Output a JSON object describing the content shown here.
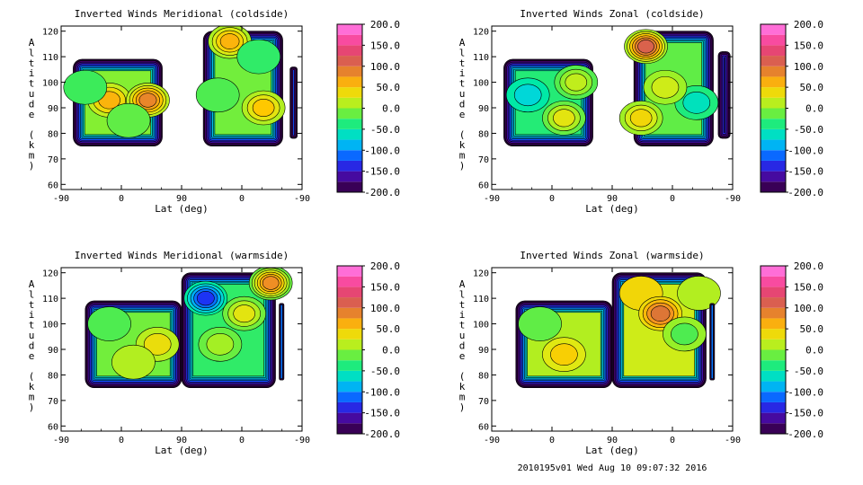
{
  "chart_data": [
    {
      "type": "heatmap",
      "title": "Inverted Winds Meridional (coldside)",
      "xlabel": "Lat (deg)",
      "ylabel": "Altitude (km)",
      "x_ticks": [
        "-90",
        "0",
        "90",
        "0",
        "-90"
      ],
      "y_ticks": [
        "60",
        "70",
        "80",
        "90",
        "100",
        "110",
        "120"
      ],
      "ylim": [
        58,
        122
      ],
      "colorbar_ticks": [
        "200.0",
        "150.0",
        "100.0",
        "50.0",
        "0.0",
        "-50.0",
        "-100.0",
        "-150.0",
        "-200.0"
      ],
      "colorbar_range": [
        -200,
        200
      ],
      "regions": [
        {
          "x": [
            0.05,
            0.42
          ],
          "y": [
            75,
            109
          ],
          "base": -5,
          "blobs": [
            {
              "x": 0.2,
              "y": 93,
              "v": 60
            },
            {
              "x": 0.36,
              "y": 93,
              "v": 85
            },
            {
              "x": 0.1,
              "y": 98,
              "v": -25
            },
            {
              "x": 0.28,
              "y": 85,
              "v": -15
            }
          ]
        },
        {
          "x": [
            0.59,
            0.92
          ],
          "y": [
            75,
            120
          ],
          "base": -10,
          "blobs": [
            {
              "x": 0.7,
              "y": 116,
              "v": 60
            },
            {
              "x": 0.82,
              "y": 110,
              "v": -30
            },
            {
              "x": 0.84,
              "y": 90,
              "v": 50
            },
            {
              "x": 0.65,
              "y": 95,
              "v": -20
            }
          ]
        },
        {
          "x": [
            0.95,
            0.98
          ],
          "y": [
            78,
            106
          ],
          "base": -120,
          "blobs": []
        }
      ]
    },
    {
      "type": "heatmap",
      "title": "Inverted Winds Zonal (coldside)",
      "xlabel": "Lat (deg)",
      "ylabel": "Altitude (km)",
      "x_ticks": [
        "-90",
        "0",
        "90",
        "0",
        "-90"
      ],
      "y_ticks": [
        "60",
        "70",
        "80",
        "90",
        "100",
        "110",
        "120"
      ],
      "ylim": [
        58,
        122
      ],
      "colorbar_ticks": [
        "200.0",
        "150.0",
        "100.0",
        "50.0",
        "0.0",
        "-50.0",
        "-100.0",
        "-150.0",
        "-200.0"
      ],
      "colorbar_range": [
        -200,
        200
      ],
      "regions": [
        {
          "x": [
            0.05,
            0.42
          ],
          "y": [
            75,
            109
          ],
          "base": -35,
          "blobs": [
            {
              "x": 0.3,
              "y": 86,
              "v": 30
            },
            {
              "x": 0.15,
              "y": 95,
              "v": -70
            },
            {
              "x": 0.35,
              "y": 100,
              "v": 15
            }
          ]
        },
        {
          "x": [
            0.59,
            0.92
          ],
          "y": [
            75,
            120
          ],
          "base": -15,
          "blobs": [
            {
              "x": 0.64,
              "y": 114,
              "v": 110
            },
            {
              "x": 0.85,
              "y": 92,
              "v": -60
            },
            {
              "x": 0.72,
              "y": 98,
              "v": 20
            },
            {
              "x": 0.62,
              "y": 86,
              "v": 40
            }
          ]
        },
        {
          "x": [
            0.94,
            0.99
          ],
          "y": [
            78,
            112
          ],
          "base": -80,
          "blobs": []
        }
      ]
    },
    {
      "type": "heatmap",
      "title": "Inverted Winds Meridional (warmside)",
      "xlabel": "Lat (deg)",
      "ylabel": "Altitude (km)",
      "x_ticks": [
        "-90",
        "0",
        "90",
        "0",
        "-90"
      ],
      "y_ticks": [
        "60",
        "70",
        "80",
        "90",
        "100",
        "110",
        "120"
      ],
      "ylim": [
        58,
        122
      ],
      "colorbar_ticks": [
        "200.0",
        "150.0",
        "100.0",
        "50.0",
        "0.0",
        "-50.0",
        "-100.0",
        "-150.0",
        "-200.0"
      ],
      "colorbar_range": [
        -200,
        200
      ],
      "regions": [
        {
          "x": [
            0.1,
            0.5
          ],
          "y": [
            75,
            109
          ],
          "base": -10,
          "blobs": [
            {
              "x": 0.4,
              "y": 92,
              "v": 35
            },
            {
              "x": 0.2,
              "y": 100,
              "v": -20
            },
            {
              "x": 0.3,
              "y": 85,
              "v": 10
            }
          ]
        },
        {
          "x": [
            0.5,
            0.89
          ],
          "y": [
            75,
            120
          ],
          "base": -30,
          "blobs": [
            {
              "x": 0.6,
              "y": 110,
              "v": -130
            },
            {
              "x": 0.76,
              "y": 104,
              "v": 30
            },
            {
              "x": 0.87,
              "y": 116,
              "v": 80
            },
            {
              "x": 0.66,
              "y": 92,
              "v": 5
            }
          ]
        },
        {
          "x": [
            0.905,
            0.925
          ],
          "y": [
            78,
            108
          ],
          "base": -110,
          "blobs": []
        }
      ]
    },
    {
      "type": "heatmap",
      "title": "Inverted Winds Zonal (warmside)",
      "xlabel": "Lat (deg)",
      "ylabel": "Altitude (km)",
      "x_ticks": [
        "-90",
        "0",
        "90",
        "0",
        "-90"
      ],
      "y_ticks": [
        "60",
        "70",
        "80",
        "90",
        "100",
        "110",
        "120"
      ],
      "ylim": [
        58,
        122
      ],
      "colorbar_ticks": [
        "200.0",
        "150.0",
        "100.0",
        "50.0",
        "0.0",
        "-50.0",
        "-100.0",
        "-150.0",
        "-200.0"
      ],
      "colorbar_range": [
        -200,
        200
      ],
      "regions": [
        {
          "x": [
            0.1,
            0.5
          ],
          "y": [
            75,
            109
          ],
          "base": 10,
          "blobs": [
            {
              "x": 0.3,
              "y": 88,
              "v": 45
            },
            {
              "x": 0.2,
              "y": 100,
              "v": -15
            }
          ]
        },
        {
          "x": [
            0.5,
            0.89
          ],
          "y": [
            75,
            120
          ],
          "base": 20,
          "blobs": [
            {
              "x": 0.62,
              "y": 112,
              "v": 40
            },
            {
              "x": 0.7,
              "y": 104,
              "v": 95
            },
            {
              "x": 0.8,
              "y": 96,
              "v": -20
            },
            {
              "x": 0.86,
              "y": 112,
              "v": 10
            }
          ]
        },
        {
          "x": [
            0.905,
            0.925
          ],
          "y": [
            78,
            108
          ],
          "base": -110,
          "blobs": []
        }
      ]
    }
  ],
  "footer": "2010195v01 Wed Aug 10 09:07:32 2016"
}
